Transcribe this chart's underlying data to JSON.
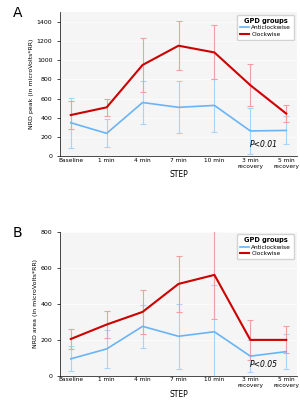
{
  "steps": [
    "Baseline",
    "1 min",
    "4 min",
    "7 min",
    "10 min",
    "3 min\nrecovery",
    "5 min\nrecovery"
  ],
  "panel_A": {
    "label": "A",
    "ylabel": "NRD peak (in microVolts*RR)",
    "pvalue": "P<0.01",
    "anticlockwise_mean": [
      350,
      240,
      560,
      510,
      530,
      265,
      270
    ],
    "anticlockwise_err": [
      260,
      145,
      220,
      270,
      275,
      240,
      145
    ],
    "clockwise_mean": [
      430,
      510,
      950,
      1150,
      1080,
      740,
      445
    ],
    "clockwise_err": [
      150,
      85,
      285,
      255,
      280,
      220,
      90
    ]
  },
  "panel_B": {
    "label": "B",
    "ylabel": "NRD area (in microVolts*RR)",
    "pvalue": "P<0.05",
    "anticlockwise_mean": [
      95,
      150,
      275,
      220,
      245,
      110,
      135
    ],
    "anticlockwise_err": [
      70,
      105,
      120,
      180,
      260,
      90,
      95
    ],
    "clockwise_mean": [
      205,
      285,
      355,
      510,
      560,
      200,
      200
    ],
    "clockwise_err": [
      55,
      75,
      120,
      155,
      245,
      110,
      75
    ]
  },
  "legend_title": "GPD groups",
  "legend_anticlockwise": "Anticlockwise",
  "legend_clockwise": "Clockwise",
  "color_anti": "#6ab4f5",
  "color_anti_err": "#a8d4fa",
  "color_clock": "#cc0000",
  "color_clock_err": "#f0a0a0",
  "xlabel": "STEP",
  "ylim_A": [
    0,
    1500
  ],
  "ylim_B": [
    0,
    800
  ],
  "yticks_A": [
    0,
    200,
    400,
    600,
    800,
    1000,
    1200,
    1400
  ],
  "yticks_B": [
    0,
    200,
    400,
    600,
    800
  ],
  "bg_color": "#f5f5f5"
}
